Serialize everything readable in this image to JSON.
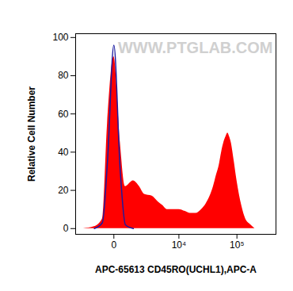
{
  "chart_data": {
    "type": "area",
    "annotation": "WWW.PTGLAB.COM",
    "x_label": "APC-65613 CD45RO(UCHL1),APC-A",
    "y_label": "Relative Cell Number",
    "log": "x",
    "x": [
      -2000,
      -1000,
      -500,
      -250,
      0,
      250,
      500,
      1000,
      1500,
      2000,
      3000,
      4000,
      5000,
      6000,
      8000,
      10000,
      13000,
      16000,
      20000,
      25000,
      30000,
      35000,
      40000,
      45000,
      50000,
      55000,
      60000,
      65000,
      70000,
      75000,
      80000,
      90000,
      100000,
      120000,
      140000,
      170000,
      200000
    ],
    "series": [
      {
        "type": "area",
        "color": "#ff0000",
        "values": [
          0,
          1,
          5,
          55,
          90,
          45,
          22,
          25,
          22,
          18,
          17,
          14,
          12,
          10,
          10,
          10,
          9,
          8,
          8,
          10,
          13,
          17,
          22,
          28,
          33,
          40,
          45,
          48,
          50,
          48,
          45,
          35,
          25,
          12,
          5,
          2,
          0
        ]
      },
      {
        "type": "line",
        "color": "#1a1aa0",
        "values": [
          null,
          0,
          3,
          35,
          96,
          30,
          2,
          0,
          null,
          null,
          null,
          null,
          null,
          null,
          null,
          null,
          null,
          null,
          null,
          null,
          null,
          null,
          null,
          null,
          null,
          null,
          null,
          null,
          null,
          null,
          null,
          null,
          null,
          null,
          null,
          null,
          null
        ]
      }
    ],
    "xlim": [
      -3000,
      450000
    ],
    "xticks": [
      0,
      {
        "value": 10000,
        "label": "10⁴"
      },
      {
        "value": 100000,
        "label": "10⁵"
      }
    ],
    "ylim": [
      -3,
      102
    ],
    "yticks": [
      0,
      20,
      40,
      60,
      80,
      100
    ],
    "grid": false
  }
}
